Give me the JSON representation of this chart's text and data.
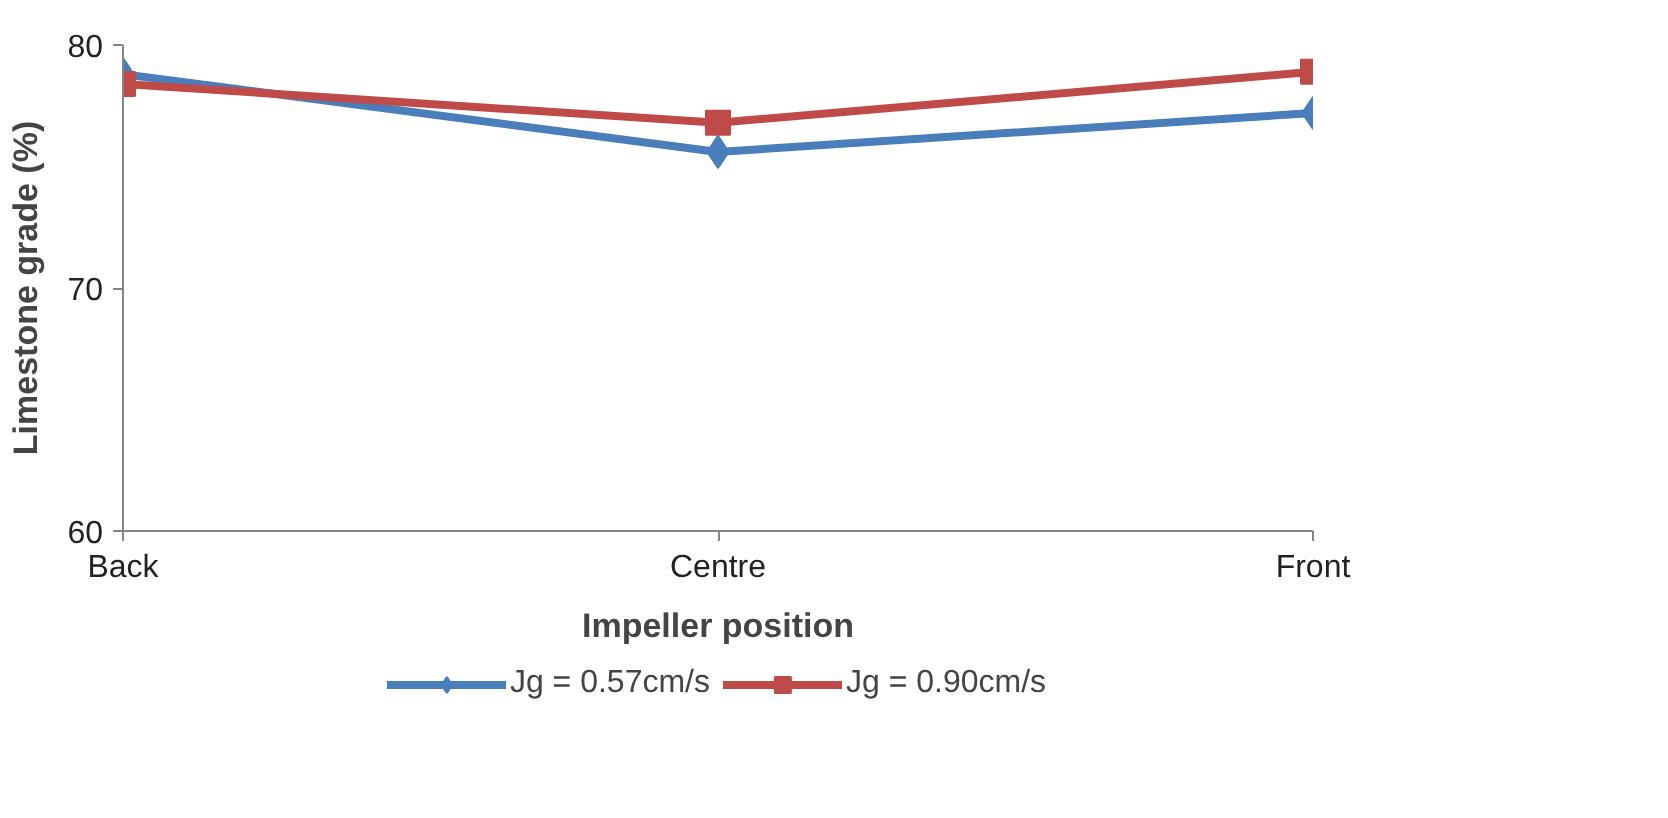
{
  "chart_data": {
    "type": "line",
    "xlabel": "Impeller position",
    "ylabel": "Limestone grade (%)",
    "categories": [
      "Back",
      "Centre",
      "Front"
    ],
    "series": [
      {
        "name": "Jg = 0.57cm/s",
        "color": "#4a7ebb",
        "marker": "diamond",
        "values": [
          78.8,
          75.6,
          77.2
        ]
      },
      {
        "name": "Jg = 0.90cm/s",
        "color": "#be4b48",
        "marker": "square",
        "values": [
          78.4,
          76.8,
          78.9
        ]
      }
    ],
    "ylim": [
      60,
      80
    ],
    "yticks": [
      60,
      70,
      80
    ],
    "grid": false,
    "legend": "bottom"
  }
}
